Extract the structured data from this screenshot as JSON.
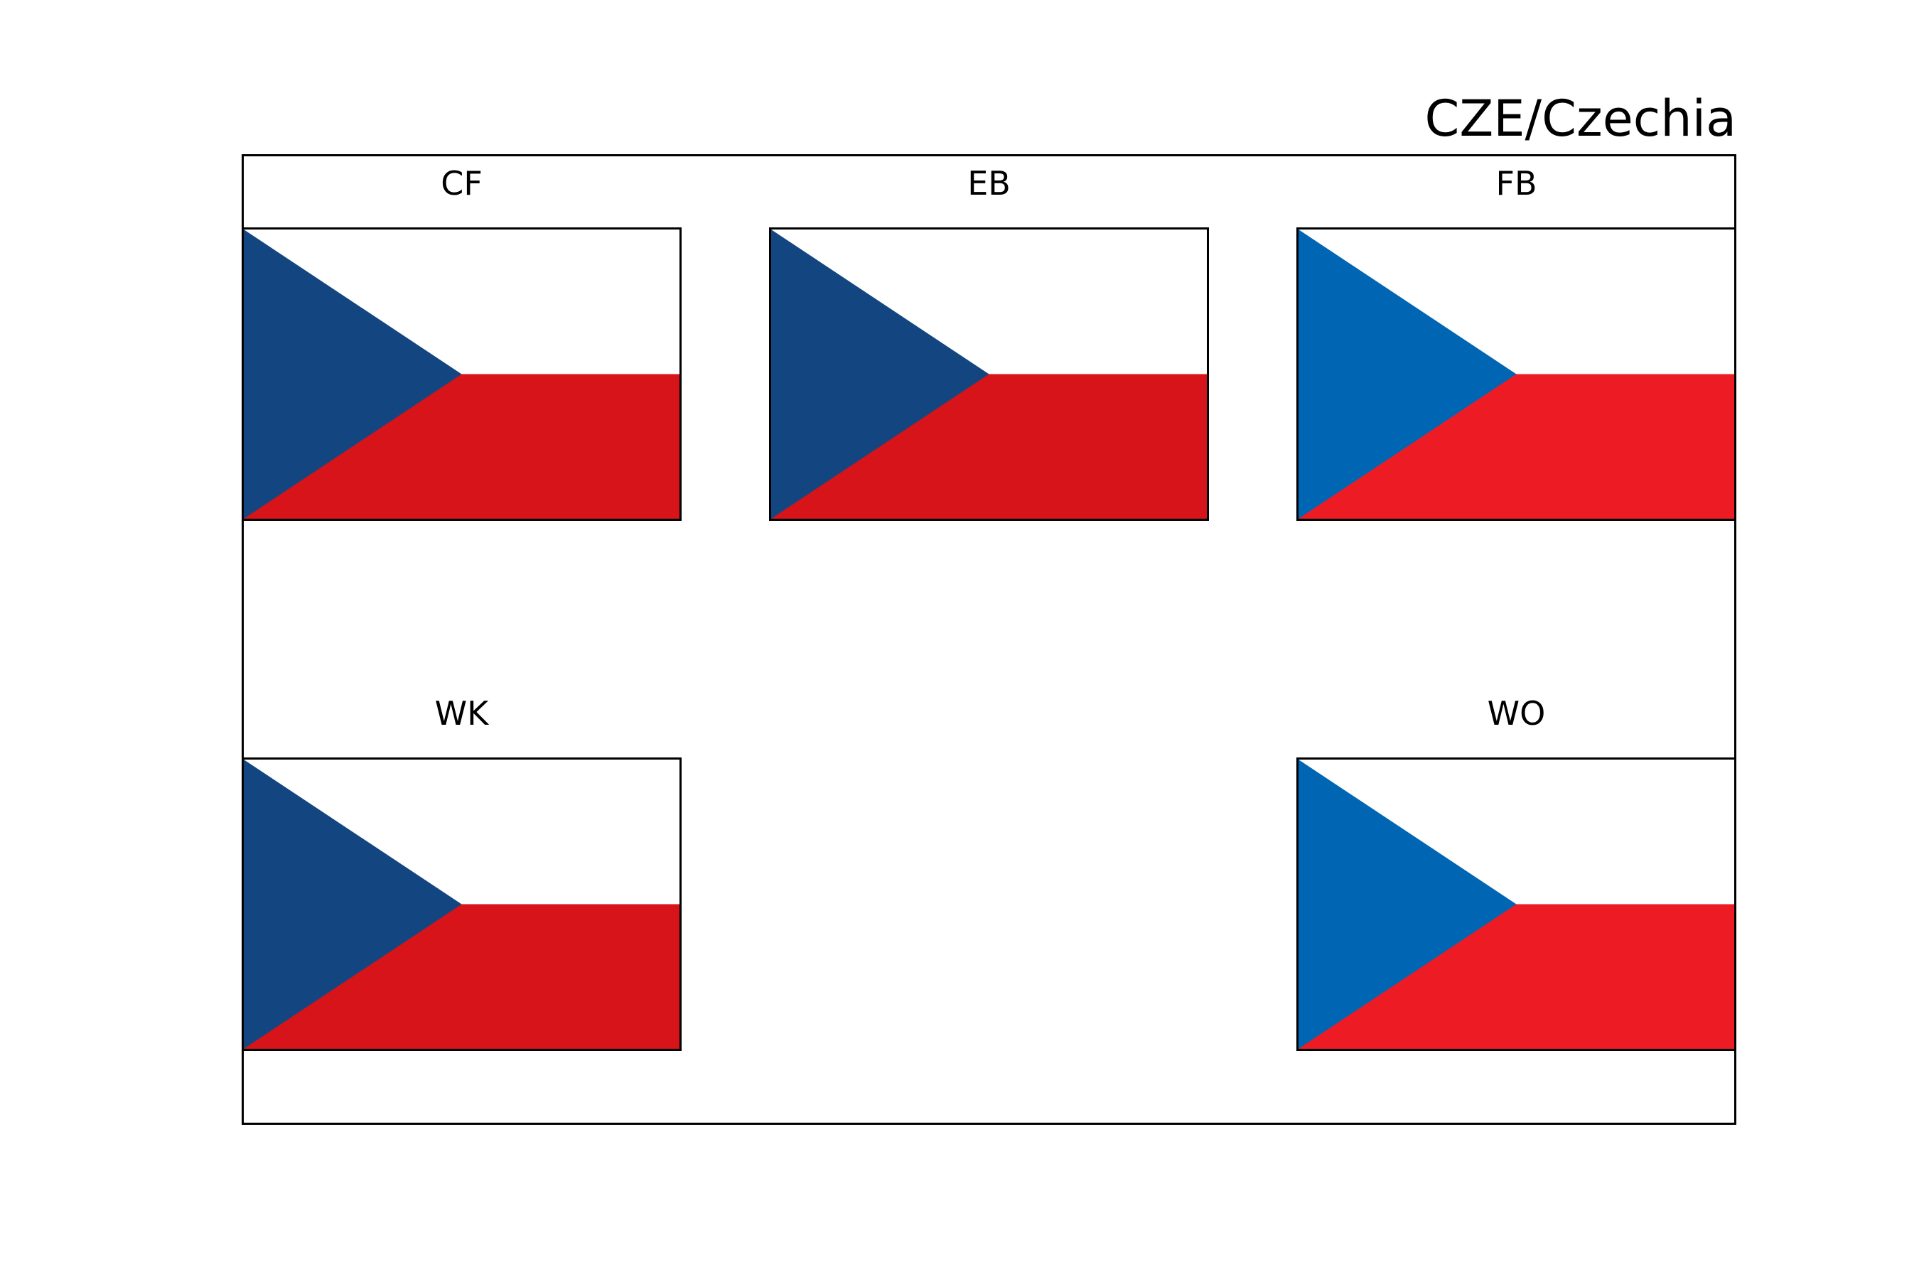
{
  "title": "CZE/Czechia",
  "flags": {
    "cf": {
      "label": "CF",
      "blue": "#134680",
      "red": "#D6141A",
      "white": "#FFFFFF"
    },
    "eb": {
      "label": "EB",
      "blue": "#134680",
      "red": "#D6141A",
      "white": "#FFFFFF"
    },
    "fb": {
      "label": "FB",
      "blue": "#0066B4",
      "red": "#ED1C24",
      "white": "#FFFFFF"
    },
    "wk": {
      "label": "WK",
      "blue": "#134680",
      "red": "#D6141A",
      "white": "#FFFFFF"
    },
    "wo": {
      "label": "WO",
      "blue": "#0066B4",
      "red": "#ED1C24",
      "white": "#FFFFFF"
    }
  }
}
